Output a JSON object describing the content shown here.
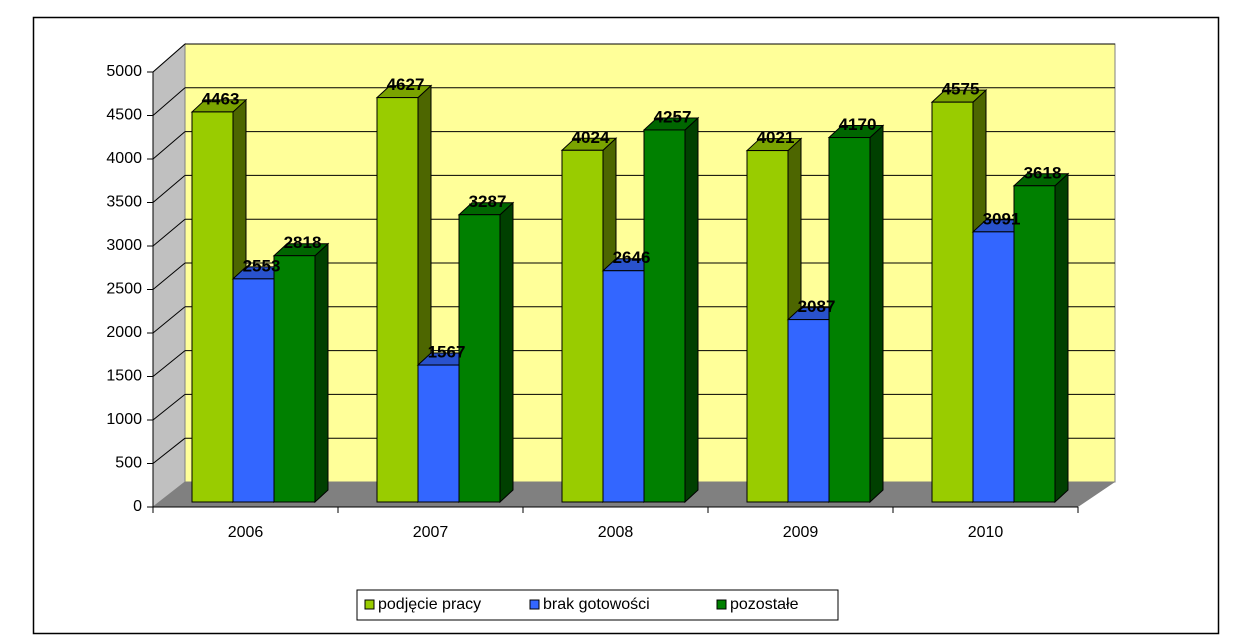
{
  "chart_data": {
    "type": "bar",
    "categories": [
      "2006",
      "2007",
      "2008",
      "2009",
      "2010"
    ],
    "series": [
      {
        "name": "podjęcie pracy",
        "color": "#99cc00",
        "values": [
          4463,
          4627,
          4024,
          4021,
          4575
        ]
      },
      {
        "name": "brak gotowości",
        "color": "#3366ff",
        "values": [
          2553,
          1567,
          2646,
          2087,
          3091
        ]
      },
      {
        "name": "pozostałe",
        "color": "#008000",
        "values": [
          2818,
          3287,
          4257,
          4170,
          3618
        ]
      }
    ],
    "ylim": [
      0,
      5000
    ],
    "yticks": [
      0,
      500,
      1000,
      1500,
      2000,
      2500,
      3000,
      3500,
      4000,
      4500,
      5000
    ],
    "grid": true,
    "legend": "bottom"
  }
}
